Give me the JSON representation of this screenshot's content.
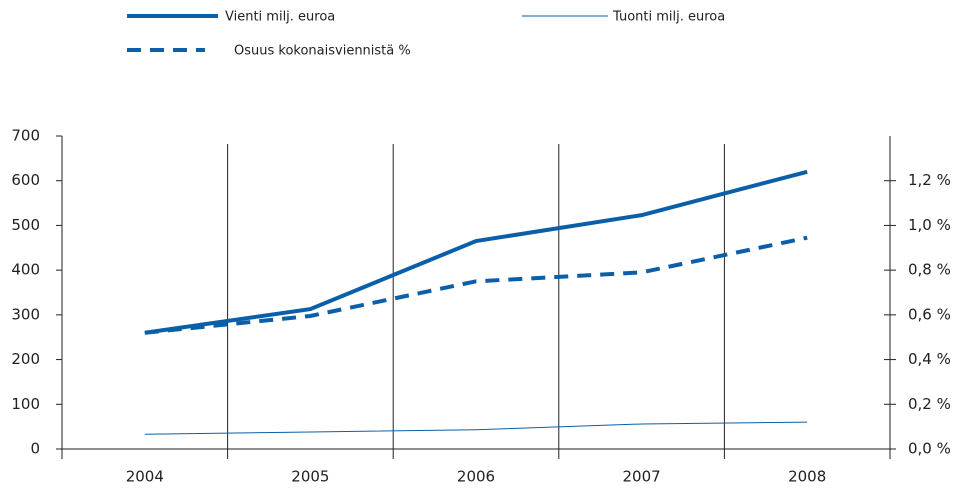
{
  "chart_data": {
    "type": "line",
    "categories": [
      "2004",
      "2005",
      "2006",
      "2007",
      "2008"
    ],
    "series": [
      {
        "name": "Vienti milj. euroa",
        "color": "#0a5fa8",
        "width": 4,
        "style": "solid",
        "values": [
          260,
          313,
          465,
          523,
          620
        ]
      },
      {
        "name": "Tuonti milj. euroa",
        "color": "#0a5fa8",
        "width": 1,
        "style": "solid",
        "values": [
          33,
          38,
          43,
          56,
          60
        ]
      },
      {
        "name": "Osuus kokonaisviennistä %",
        "color": "#0a5fa8",
        "width": 4,
        "style": "dashed",
        "axis": "y2",
        "values": [
          0.52,
          0.595,
          0.75,
          0.79,
          0.945
        ]
      }
    ],
    "ylim": [
      0,
      700
    ],
    "yticks": [
      0,
      100,
      200,
      300,
      400,
      500,
      600,
      700
    ],
    "y2lim": [
      0,
      1.4
    ],
    "y2ticks": [
      {
        "value": 0,
        "label": "0,0 %"
      },
      {
        "value": 0.2,
        "label": "0,2 %"
      },
      {
        "value": 0.4,
        "label": "0,4 %"
      },
      {
        "value": 0.6,
        "label": "0,6 %"
      },
      {
        "value": 0.8,
        "label": "0,8 %"
      },
      {
        "value": 1.0,
        "label": "1,0 %"
      },
      {
        "value": 1.2,
        "label": "1,2 %"
      }
    ]
  }
}
